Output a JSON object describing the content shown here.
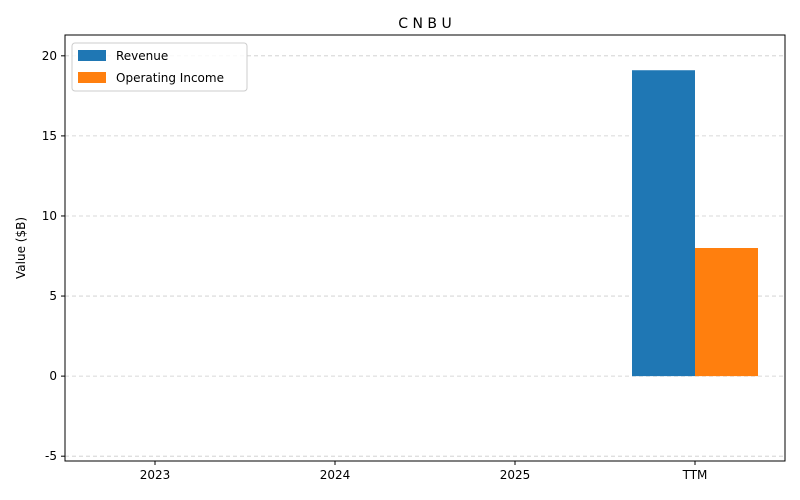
{
  "chart_data": {
    "type": "bar",
    "title": "C N B U",
    "xlabel": "",
    "ylabel": "Value ($B)",
    "categories": [
      "2023",
      "2024",
      "2025",
      "TTM"
    ],
    "series": [
      {
        "name": "Revenue",
        "color": "#1f77b4",
        "values": [
          null,
          null,
          null,
          19.1
        ]
      },
      {
        "name": "Operating Income",
        "color": "#ff7f0e",
        "values": [
          null,
          null,
          null,
          8.0
        ]
      }
    ],
    "ylim": [
      -5.3,
      21.3
    ],
    "yticks": [
      -5,
      0,
      5,
      10,
      15,
      20
    ],
    "grid": true,
    "grid_axis": "y",
    "legend_position": "top-left"
  }
}
